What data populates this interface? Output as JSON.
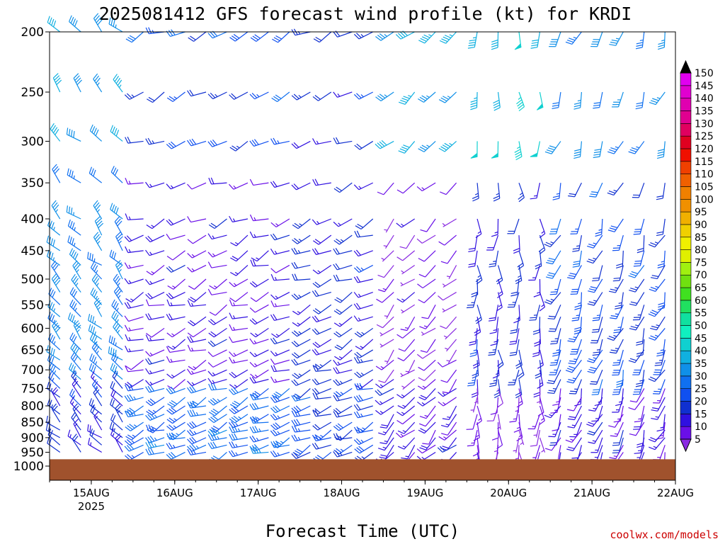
{
  "title": "2025081412 GFS forecast wind profile (kt) for KRDI",
  "xlabel": "Forecast Time (UTC)",
  "credit": "coolwx.com/models",
  "colors": {
    "ground": "#a0522d",
    "frame": "#000000",
    "credit": "#cc0000"
  },
  "chart_data": {
    "type": "wind-barb time-height",
    "units": "kt",
    "y_axis": {
      "label": "",
      "scale": "log-pressure",
      "ylim": [
        1000,
        200
      ],
      "ticks": [
        200,
        250,
        300,
        350,
        400,
        450,
        500,
        550,
        600,
        650,
        700,
        750,
        800,
        850,
        900,
        950,
        1000
      ]
    },
    "x_axis": {
      "label": "Forecast Time (UTC)",
      "range": [
        "2025-08-14 12Z",
        "2025-08-22 00Z"
      ],
      "ticks": [
        "15AUG",
        "16AUG",
        "17AUG",
        "18AUG",
        "19AUG",
        "20AUG",
        "21AUG",
        "22AUG"
      ],
      "year_label": "2025"
    },
    "surface_pressure_hpa": 975,
    "colorbar": {
      "levels": [
        5,
        10,
        15,
        20,
        25,
        30,
        35,
        40,
        45,
        50,
        55,
        60,
        65,
        70,
        75,
        80,
        85,
        90,
        95,
        100,
        105,
        110,
        115,
        120,
        125,
        130,
        135,
        140,
        145,
        150
      ],
      "colors": [
        "#8a2be2",
        "#6a0fe8",
        "#3010e0",
        "#1030d0",
        "#1050f0",
        "#1070f0",
        "#1090e8",
        "#10b0e0",
        "#10d0d0",
        "#10f0c0",
        "#10e0a0",
        "#20e060",
        "#40e020",
        "#70e010",
        "#a0f010",
        "#e0f000",
        "#f0f000",
        "#f0d000",
        "#f0b000",
        "#f09000",
        "#f08000",
        "#f06000",
        "#f04000",
        "#f01000",
        "#e00020",
        "#e00060",
        "#e00090",
        "#e000b0",
        "#e000d0",
        "#e000f0"
      ]
    },
    "wind_summary": [
      {
        "period": "15AUG",
        "upper_kt": 40,
        "mid_kt": 35,
        "low_kt": 20,
        "dir": "NW"
      },
      {
        "period": "16AUG",
        "upper_kt": 25,
        "mid_kt": 15,
        "low_kt": 30,
        "dir": "WSW"
      },
      {
        "period": "17AUG",
        "upper_kt": 25,
        "mid_kt": 15,
        "low_kt": 30,
        "dir": "WSW"
      },
      {
        "period": "18AUG",
        "upper_kt": 20,
        "mid_kt": 20,
        "low_kt": 25,
        "dir": "WSW"
      },
      {
        "period": "19AUG",
        "upper_kt": 40,
        "mid_kt": 10,
        "low_kt": 15,
        "dir": "SW"
      },
      {
        "period": "20AUG",
        "upper_kt": 45,
        "mid_kt": 20,
        "low_kt": 10,
        "dir": "S"
      },
      {
        "period": "21AUG",
        "upper_kt": 35,
        "mid_kt": 25,
        "low_kt": 15,
        "dir": "SSW"
      }
    ]
  }
}
